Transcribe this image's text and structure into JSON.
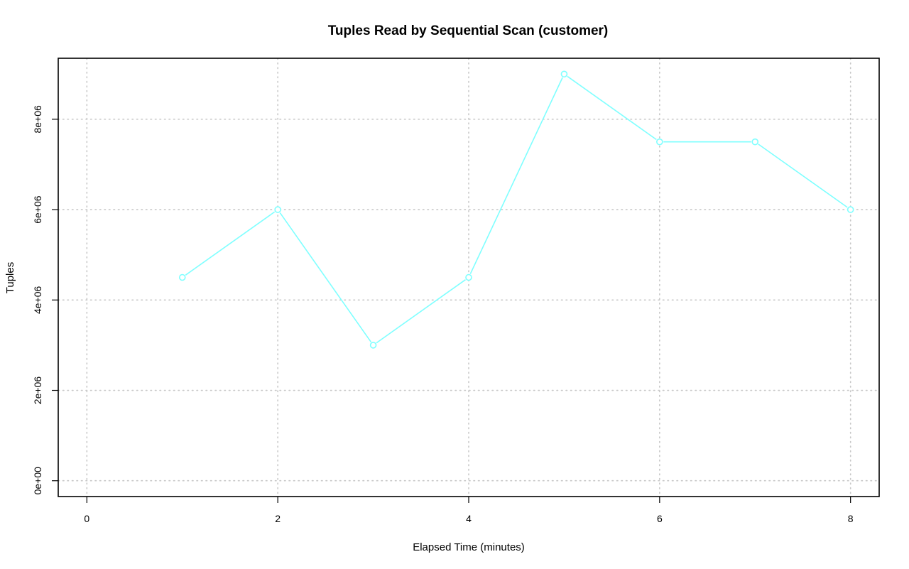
{
  "chart_data": {
    "type": "line",
    "title": "Tuples Read by Sequential Scan (customer)",
    "xlabel": "Elapsed Time (minutes)",
    "ylabel": "Tuples",
    "xlim": [
      -0.3,
      8.3
    ],
    "ylim": [
      -350000,
      9350000
    ],
    "x_ticks": [
      0,
      2,
      4,
      6,
      8
    ],
    "x_tick_labels": [
      "0",
      "2",
      "4",
      "6",
      "8"
    ],
    "y_ticks": [
      0,
      2000000,
      4000000,
      6000000,
      8000000
    ],
    "y_tick_labels": [
      "0e+00",
      "2e+06",
      "4e+06",
      "6e+06",
      "8e+06"
    ],
    "grid": true,
    "color": "#7fffff",
    "series": [
      {
        "x": [
          1,
          2,
          3,
          4,
          5,
          6,
          7,
          8
        ],
        "values": [
          4500000,
          6000000,
          3000000,
          4500000,
          9000000,
          7500000,
          7500000,
          6000000
        ]
      }
    ]
  }
}
